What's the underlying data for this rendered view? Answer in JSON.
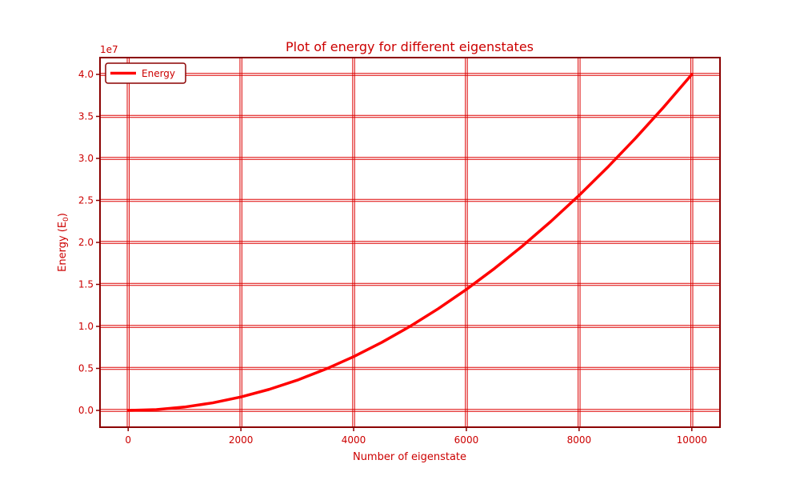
{
  "chart_data": {
    "type": "line",
    "title": "Plot of energy for different eigenstates",
    "xlabel": "Number of eigenstate",
    "ylabel": "Energy (E",
    "ylabel_subscript": "0",
    "ylabel_close": ")",
    "y_offset_label": "1e7",
    "y_multiplier": 10000000,
    "xlim": [
      -500,
      10500
    ],
    "ylim": [
      -0.2,
      4.2
    ],
    "x_ticks": [
      0,
      2000,
      4000,
      6000,
      8000,
      10000
    ],
    "x_tick_labels": [
      "0",
      "2000",
      "4000",
      "6000",
      "8000",
      "10000"
    ],
    "y_ticks": [
      0.0,
      0.5,
      1.0,
      1.5,
      2.0,
      2.5,
      3.0,
      3.5,
      4.0
    ],
    "y_tick_labels": [
      "0.0",
      "0.5",
      "1.0",
      "1.5",
      "2.0",
      "2.5",
      "3.0",
      "3.5",
      "4.0"
    ],
    "grid": true,
    "legend_position": "top-left",
    "series": [
      {
        "name": "Energy",
        "color": "#ff0000",
        "x": [
          0,
          500,
          1000,
          1500,
          2000,
          2500,
          3000,
          3500,
          4000,
          4500,
          5000,
          5500,
          6000,
          6500,
          7000,
          7500,
          8000,
          8500,
          9000,
          9500,
          10000
        ],
        "y": [
          0.0,
          0.01,
          0.04,
          0.09,
          0.16,
          0.25,
          0.36,
          0.49,
          0.64,
          0.81,
          1.0,
          1.21,
          1.44,
          1.69,
          1.96,
          2.25,
          2.56,
          2.89,
          3.24,
          3.61,
          4.0
        ]
      }
    ],
    "colors": {
      "text": "#cc0000",
      "axis": "#8b0000",
      "grid": "#dd0000",
      "line": "#ff0000"
    }
  }
}
